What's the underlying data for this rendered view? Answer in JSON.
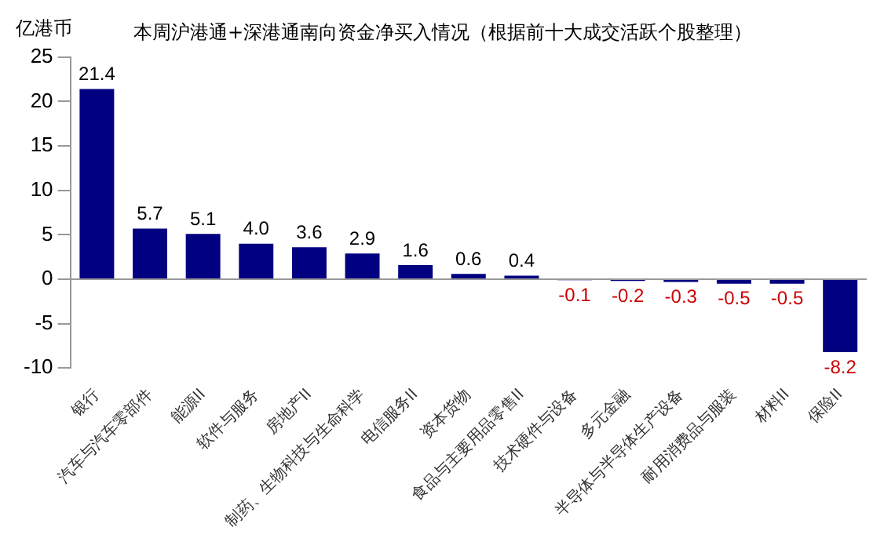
{
  "chart_data": {
    "type": "bar",
    "title": "本周沪港通+深港通南向资金净买入情况（根据前十大成交活跃个股整理）",
    "ylabel": "亿港币",
    "categories": [
      "银行",
      "汽车与汽车零部件",
      "能源II",
      "软件与服务",
      "房地产II",
      "制药、生物科技与生命科学",
      "电信服务II",
      "资本货物",
      "食品与主要用品零售II",
      "技术硬件与设备",
      "多元金融",
      "半导体与半导体生产设备",
      "耐用消费品与服装",
      "材料II",
      "保险II"
    ],
    "values": [
      21.4,
      5.7,
      5.1,
      4.0,
      3.6,
      2.9,
      1.6,
      0.6,
      0.4,
      -0.1,
      -0.2,
      -0.3,
      -0.5,
      -0.5,
      -8.2
    ],
    "value_labels": [
      "21.4",
      "5.7",
      "5.1",
      "4.0",
      "3.6",
      "2.9",
      "1.6",
      "0.6",
      "0.4",
      "-0.1",
      "-0.2",
      "-0.3",
      "-0.5",
      "-0.5",
      "-8.2"
    ],
    "color": "#000080",
    "ylim": [
      -10,
      25
    ],
    "yticks": [
      -10,
      -5,
      0,
      5,
      10,
      15,
      20,
      25
    ],
    "legend": false
  }
}
